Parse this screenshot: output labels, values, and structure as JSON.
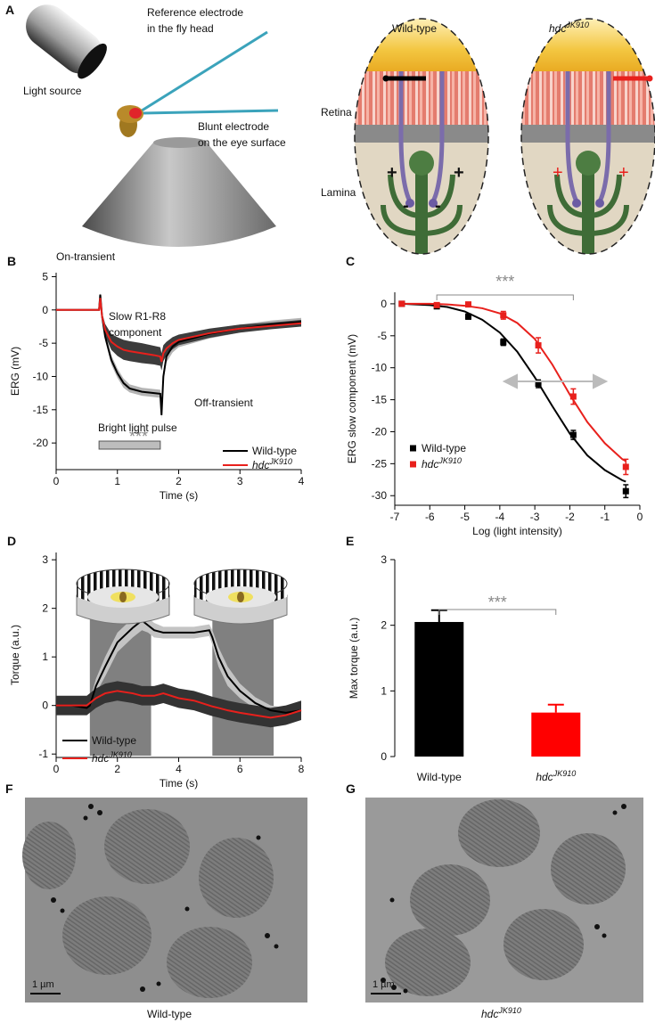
{
  "panel_a": {
    "label": "A",
    "light_source": "Light source",
    "reference_electrode": [
      "Reference electrode",
      "in the fly head"
    ],
    "blunt_electrode": [
      "Blunt electrode",
      "on the eye surface"
    ],
    "wild_type": "Wild-type",
    "mutant": "hdc",
    "mutant_sup": "JK910",
    "retina": "Retina",
    "lamina": "Lamina",
    "wild_type_signs": [
      "+",
      "-",
      "-",
      "+"
    ],
    "mutant_signs": [
      "+",
      "+"
    ]
  },
  "chart_data": [
    {
      "panel": "B",
      "type": "line",
      "x_label": "Time (s)",
      "y_label": "ERG (mV)",
      "xlim": [
        0,
        4
      ],
      "xticks": [
        0,
        1,
        2,
        3,
        4
      ],
      "ylim": [
        -24,
        5.6
      ],
      "yticks": [
        5,
        0,
        -5,
        -10,
        -15,
        -20
      ],
      "x": [
        0,
        0.5,
        0.7,
        0.72,
        0.75,
        0.8,
        0.9,
        1.0,
        1.1,
        1.2,
        1.4,
        1.6,
        1.7,
        1.72,
        1.75,
        1.8,
        1.9,
        2.0,
        2.5,
        3.0,
        3.5,
        4.0
      ],
      "series": [
        {
          "name": "Wild-type",
          "color": "#000000",
          "band_color": "#b4b4b4",
          "values": [
            0,
            0,
            0,
            2.3,
            -1,
            -4,
            -7.5,
            -9.5,
            -11,
            -11.8,
            -12.3,
            -12.5,
            -12.6,
            -15.8,
            -10,
            -7,
            -5.5,
            -4.8,
            -3.6,
            -2.8,
            -2.2,
            -1.8
          ],
          "errors": [
            0,
            0,
            0,
            0.3,
            0.5,
            0.6,
            0.7,
            0.7,
            0.7,
            0.6,
            0.6,
            0.6,
            0.6,
            0.6,
            0.8,
            0.9,
            0.9,
            0.8,
            0.7,
            0.6,
            0.6,
            0.6
          ]
        },
        {
          "name": "hdc",
          "name_sup": "JK910",
          "color": "#e8201c",
          "band_color": "#3c3c3c",
          "values": [
            0,
            0,
            0,
            1.8,
            -1,
            -3,
            -4.8,
            -5.5,
            -6,
            -6.2,
            -6.5,
            -6.8,
            -7,
            -7.8,
            -6.5,
            -5.8,
            -5,
            -4.5,
            -3.5,
            -2.8,
            -2.4,
            -2.0
          ],
          "errors": [
            0,
            0,
            0,
            0.3,
            0.6,
            0.9,
            1.2,
            1.4,
            1.5,
            1.5,
            1.5,
            1.4,
            1.4,
            1.3,
            1.2,
            1.0,
            0.9,
            0.8,
            0.7,
            0.6,
            0.5,
            0.5
          ]
        }
      ],
      "on_transient": "On-transient",
      "slow_component": [
        "Slow R1-R8",
        "component"
      ],
      "off_transient": "Off-transient",
      "significance": "***",
      "pulse_label": "Bright light pulse",
      "pulse": [
        0.7,
        1.7
      ]
    },
    {
      "panel": "C",
      "type": "scatter",
      "x_label": "Log (light intensity)",
      "y_label": "ERG slow component (mV)",
      "xlim": [
        -7,
        0
      ],
      "xticks": [
        -7,
        -6,
        -5,
        -4,
        -3,
        -2,
        -1,
        0
      ],
      "ylim": [
        -31.5,
        1.8
      ],
      "yticks": [
        0,
        -5,
        -10,
        -15,
        -20,
        -25,
        -30
      ],
      "x": [
        -6.8,
        -5.8,
        -4.9,
        -3.9,
        -2.9,
        -1.9,
        -0.4
      ],
      "fit_x": [
        -6.8,
        -6,
        -5.5,
        -5,
        -4.5,
        -4,
        -3.5,
        -3,
        -2.5,
        -2,
        -1.5,
        -1,
        -0.5,
        -0.4
      ],
      "series": [
        {
          "name": "Wild-type",
          "color": "#000000",
          "values": [
            0,
            -0.4,
            -2,
            -6,
            -12.5,
            -20.5,
            -29.3
          ],
          "errors": [
            0.3,
            0.3,
            0.4,
            0.5,
            0.6,
            0.7,
            1.0
          ],
          "fit": [
            0,
            -0.2,
            -0.5,
            -1.2,
            -2.5,
            -4.5,
            -7.5,
            -11.5,
            -16,
            -20.3,
            -23.7,
            -26,
            -27.6,
            -27.8
          ]
        },
        {
          "name": "hdc",
          "name_sup": "JK910",
          "color": "#e8201c",
          "values": [
            0,
            -0.2,
            -0.1,
            -1.8,
            -6.5,
            -14.5,
            -25.5
          ],
          "errors": [
            0.2,
            0.3,
            0.3,
            0.6,
            1.2,
            1.2,
            1.2
          ],
          "fit": [
            0,
            0,
            -0.1,
            -0.3,
            -0.7,
            -1.5,
            -3,
            -5.5,
            -9.5,
            -14.2,
            -18.5,
            -21.8,
            -24.3,
            -24.6
          ]
        }
      ],
      "significance": "***"
    },
    {
      "panel": "D",
      "type": "line",
      "x_label": "Time (s)",
      "y_label": "Torque (a.u.)",
      "xlim": [
        0,
        8
      ],
      "xticks": [
        0,
        2,
        4,
        6,
        8
      ],
      "ylim": [
        -1.07,
        3.15
      ],
      "yticks": [
        3,
        2,
        1,
        0,
        -1
      ],
      "stimulus": [
        [
          1.1,
          3.1
        ],
        [
          5.1,
          7.1
        ]
      ],
      "x": [
        0,
        0.5,
        1,
        1.1,
        1.3,
        1.6,
        2,
        2.5,
        2.8,
        3,
        3.2,
        3.5,
        4,
        4.5,
        5,
        5.1,
        5.3,
        5.6,
        6,
        6.5,
        7,
        7.5,
        8
      ],
      "series": [
        {
          "name": "Wild-type",
          "color": "#000000",
          "band_color": "#c4c4c4",
          "values": [
            0,
            0,
            -0.05,
            0,
            0.4,
            0.8,
            1.3,
            1.6,
            1.75,
            1.65,
            1.55,
            1.5,
            1.5,
            1.5,
            1.55,
            1.4,
            1,
            0.6,
            0.3,
            0.05,
            -0.1,
            -0.15,
            -0.1
          ],
          "errors": [
            0.08,
            0.08,
            0.1,
            0.1,
            0.15,
            0.2,
            0.2,
            0.2,
            0.2,
            0.15,
            0.15,
            0.12,
            0.12,
            0.12,
            0.12,
            0.15,
            0.2,
            0.2,
            0.15,
            0.12,
            0.1,
            0.1,
            0.1
          ]
        },
        {
          "name": "hdc",
          "name_sup": "JK910",
          "color": "#e8201c",
          "band_color": "#333333",
          "values": [
            0,
            0,
            0,
            0.05,
            0.15,
            0.25,
            0.3,
            0.25,
            0.2,
            0.2,
            0.2,
            0.25,
            0.15,
            0.1,
            0,
            -0.02,
            -0.05,
            -0.1,
            -0.15,
            -0.2,
            -0.25,
            -0.2,
            -0.1
          ],
          "errors": [
            0.2,
            0.2,
            0.2,
            0.2,
            0.2,
            0.2,
            0.2,
            0.2,
            0.2,
            0.2,
            0.2,
            0.2,
            0.2,
            0.2,
            0.2,
            0.2,
            0.2,
            0.2,
            0.2,
            0.2,
            0.2,
            0.2,
            0.2
          ]
        }
      ]
    },
    {
      "panel": "E",
      "type": "bar",
      "y_label": "Max torque (a.u.)",
      "ylim": [
        0,
        3
      ],
      "yticks": [
        0,
        1,
        2,
        3
      ],
      "categories": [
        "Wild-type",
        "hdc"
      ],
      "superscripts": {
        "1": "JK910"
      },
      "values": [
        2.05,
        0.67
      ],
      "errors": [
        0.18,
        0.12
      ],
      "colors": [
        "#000000",
        "#ff0000"
      ],
      "significance": "***"
    }
  ],
  "panel_f": {
    "label": "F",
    "scale": "1 µm",
    "caption": "Wild-type"
  },
  "panel_g": {
    "label": "G",
    "scale": "1 µm",
    "caption": "hdc",
    "caption_sup": "JK910"
  }
}
